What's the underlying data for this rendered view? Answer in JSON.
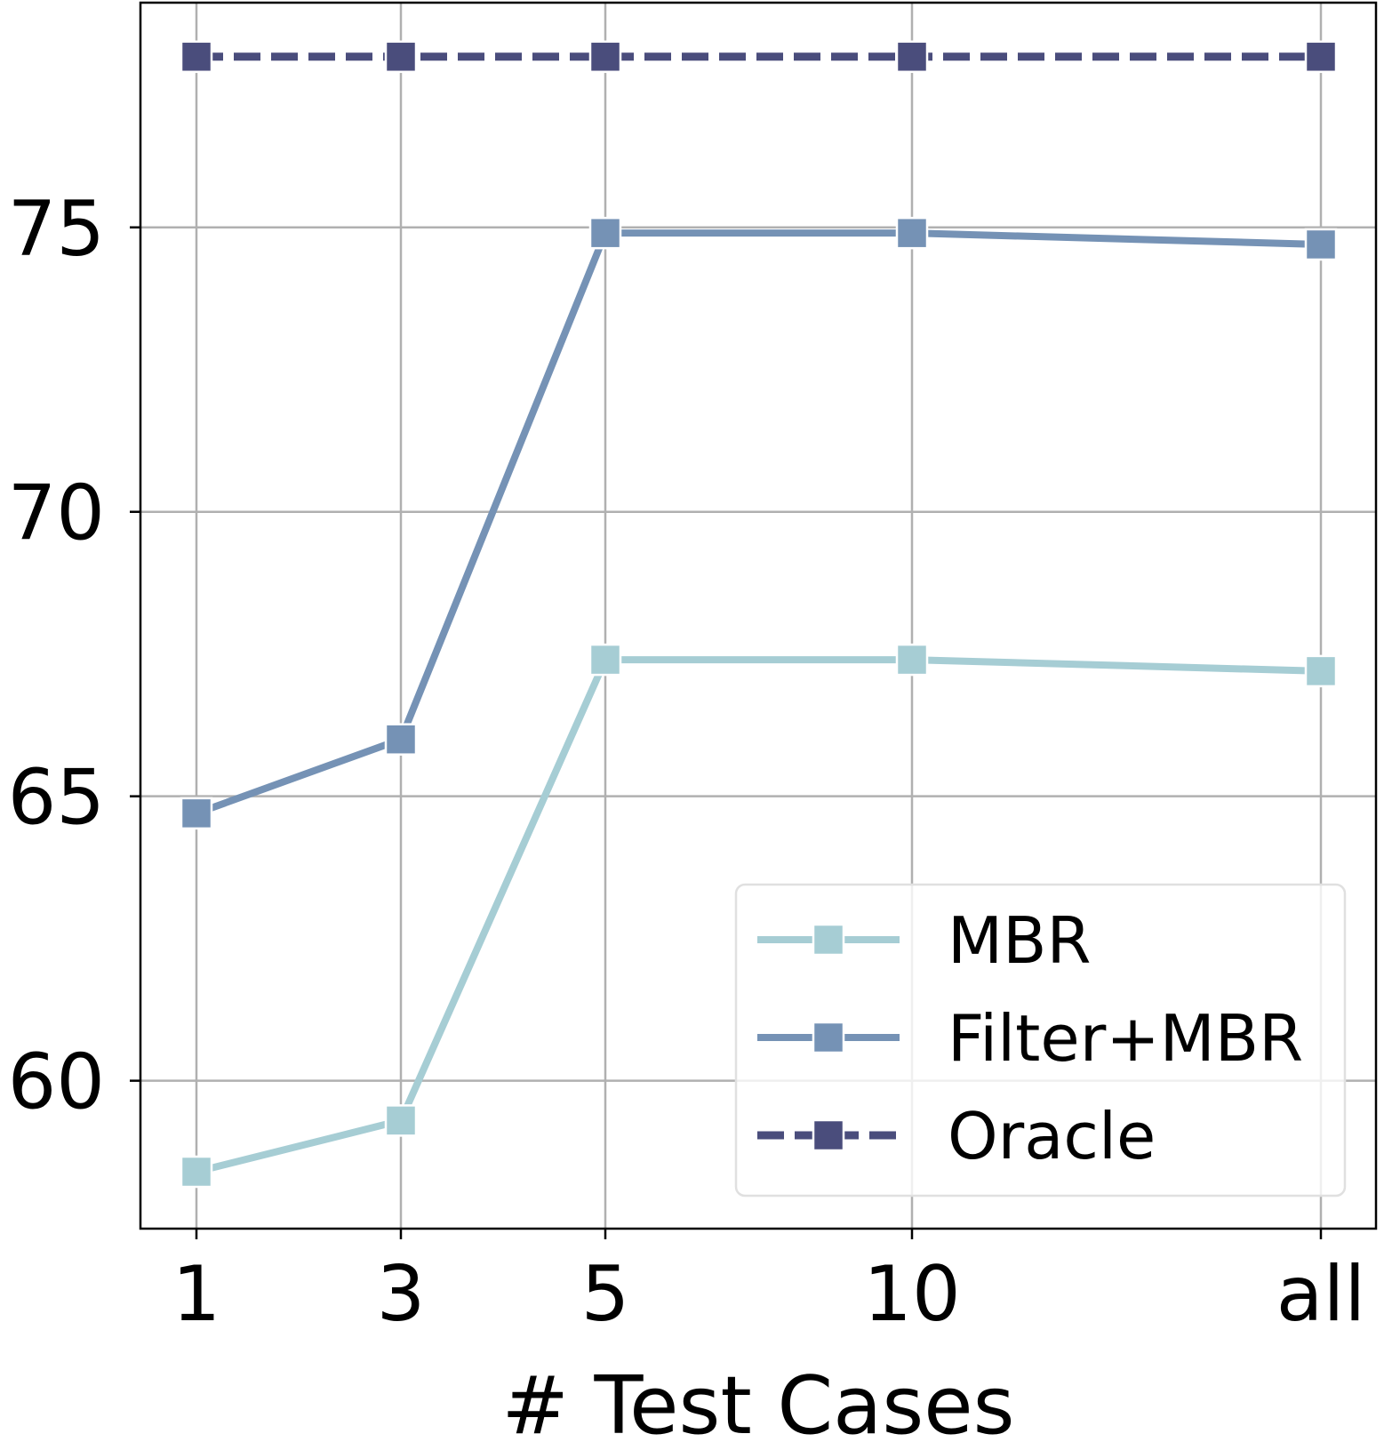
{
  "chart_data": {
    "type": "line",
    "title": "",
    "xlabel": "# Test Cases",
    "ylabel": "",
    "categories": [
      "1",
      "3",
      "5",
      "10",
      "all"
    ],
    "ylim": [
      57.4,
      78.95
    ],
    "yticks": [
      60,
      65,
      70,
      75
    ],
    "ytick_labels": [
      "60",
      "65",
      "70",
      "75"
    ],
    "grid": true,
    "legend_position": "lower-right",
    "series": [
      {
        "name": "MBR",
        "values": [
          58.4,
          59.3,
          67.4,
          67.4,
          67.2
        ],
        "color": "#a6cdd4",
        "linestyle": "solid",
        "marker": "square"
      },
      {
        "name": "Filter+MBR",
        "values": [
          64.7,
          66.0,
          74.9,
          74.9,
          74.7
        ],
        "color": "#7592b5",
        "linestyle": "solid",
        "marker": "square"
      },
      {
        "name": "Oracle",
        "values": [
          78.0,
          78.0,
          78.0,
          78.0,
          78.0
        ],
        "color": "#4a4d7c",
        "linestyle": "dashed",
        "marker": "square"
      }
    ]
  }
}
